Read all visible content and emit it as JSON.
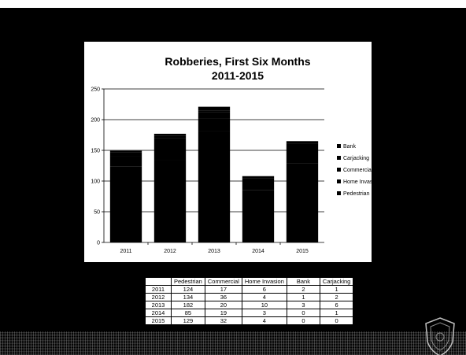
{
  "chart_data": {
    "type": "bar",
    "title": "Robberies, First Six Months",
    "subtitle": "2011-2015",
    "categories": [
      "2011",
      "2012",
      "2013",
      "2014",
      "2015"
    ],
    "series": [
      {
        "name": "Pedestrian",
        "values": [
          124,
          134,
          182,
          85,
          129
        ]
      },
      {
        "name": "Commercial",
        "values": [
          17,
          36,
          20,
          19,
          32
        ]
      },
      {
        "name": "Home Invasion",
        "values": [
          6,
          4,
          10,
          3,
          4
        ]
      },
      {
        "name": "Bank",
        "values": [
          2,
          1,
          3,
          0,
          0
        ]
      },
      {
        "name": "Carjacking",
        "values": [
          1,
          2,
          6,
          1,
          0
        ]
      }
    ],
    "stacked": true,
    "ylim": [
      0,
      250
    ],
    "yticks": [
      0,
      50,
      100,
      150,
      200,
      250
    ],
    "grid": true,
    "legend": {
      "position": "right",
      "items": [
        "Bank",
        "Carjacking",
        "Commercial",
        "Home Invasion",
        "Pedestrian"
      ]
    },
    "colors": {
      "bar": "#000000",
      "grid": "#000000",
      "background": "#ffffff"
    }
  },
  "table": {
    "headers": [
      "Pedestrian",
      "Commercial",
      "Home Invasion",
      "Bank",
      "Carjacking"
    ],
    "rows": [
      {
        "year": "2011",
        "values": [
          "124",
          "17",
          "6",
          "2",
          "1"
        ]
      },
      {
        "year": "2012",
        "values": [
          "134",
          "36",
          "4",
          "1",
          "2"
        ]
      },
      {
        "year": "2013",
        "values": [
          "182",
          "20",
          "10",
          "3",
          "6"
        ]
      },
      {
        "year": "2014",
        "values": [
          "85",
          "19",
          "3",
          "0",
          "1"
        ]
      },
      {
        "year": "2015",
        "values": [
          "129",
          "32",
          "4",
          "0",
          "0"
        ]
      }
    ]
  },
  "badge": {
    "icon": "police-badge-icon"
  }
}
